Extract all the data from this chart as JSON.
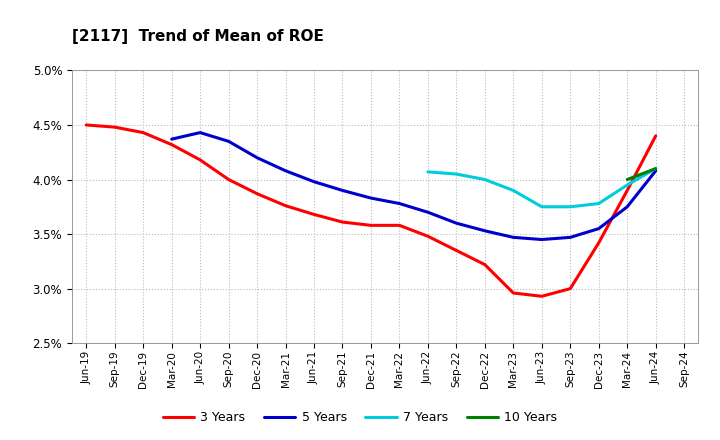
{
  "title": "[2117]  Trend of Mean of ROE",
  "background_color": "#ffffff",
  "plot_bg_color": "#ffffff",
  "grid_color": "#bbbbbb",
  "ylim": [
    0.025,
    0.05
  ],
  "yticks": [
    0.025,
    0.03,
    0.035,
    0.04,
    0.045,
    0.05
  ],
  "series": {
    "3 Years": {
      "color": "#ff0000",
      "data": [
        0.045,
        0.0448,
        0.0443,
        0.0432,
        0.0418,
        0.04,
        0.0387,
        0.0376,
        0.0368,
        0.0361,
        0.0358,
        0.0358,
        0.0348,
        0.0335,
        0.0322,
        0.0296,
        0.0293,
        0.03,
        0.0342,
        0.039,
        0.044,
        null
      ]
    },
    "5 Years": {
      "color": "#0000cc",
      "data": [
        null,
        null,
        null,
        0.0437,
        0.0443,
        0.0435,
        0.042,
        0.0408,
        0.0398,
        0.039,
        0.0383,
        0.0378,
        0.037,
        0.036,
        0.0353,
        0.0347,
        0.0345,
        0.0347,
        0.0355,
        0.0375,
        0.0408,
        null
      ]
    },
    "7 Years": {
      "color": "#00ccdd",
      "data": [
        null,
        null,
        null,
        null,
        null,
        null,
        null,
        null,
        null,
        null,
        null,
        null,
        0.0407,
        0.0405,
        0.04,
        0.039,
        0.0375,
        0.0375,
        0.0378,
        0.0395,
        0.041,
        null
      ]
    },
    "10 Years": {
      "color": "#008000",
      "data": [
        null,
        null,
        null,
        null,
        null,
        null,
        null,
        null,
        null,
        null,
        null,
        null,
        null,
        null,
        null,
        null,
        null,
        null,
        null,
        0.04,
        0.041,
        null
      ]
    }
  },
  "x_labels": [
    "Jun-19",
    "Sep-19",
    "Dec-19",
    "Mar-20",
    "Jun-20",
    "Sep-20",
    "Dec-20",
    "Mar-21",
    "Jun-21",
    "Sep-21",
    "Dec-21",
    "Mar-22",
    "Jun-22",
    "Sep-22",
    "Dec-22",
    "Mar-23",
    "Jun-23",
    "Sep-23",
    "Dec-23",
    "Mar-24",
    "Jun-24",
    "Sep-24"
  ],
  "legend_entries": [
    "3 Years",
    "5 Years",
    "7 Years",
    "10 Years"
  ]
}
